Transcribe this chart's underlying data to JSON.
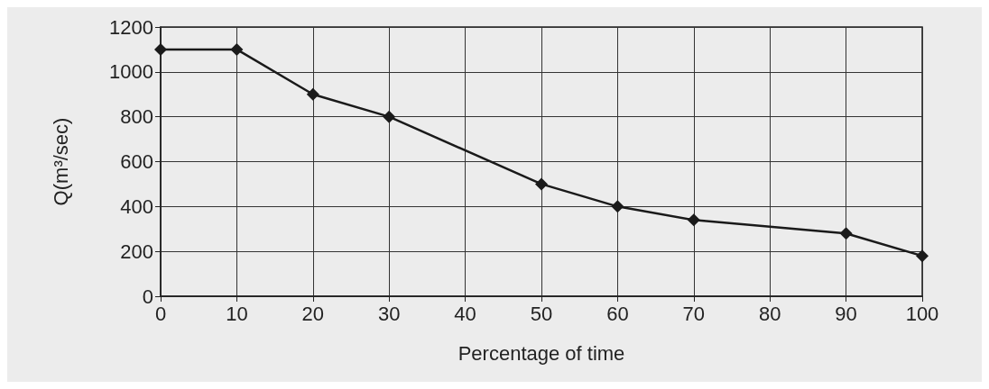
{
  "chart_data": {
    "type": "line",
    "xlabel": "Percentage of time",
    "ylabel": "Q(m³/sec)",
    "x": [
      0,
      10,
      20,
      30,
      50,
      60,
      70,
      90,
      100
    ],
    "series": [
      {
        "color": "#1a1a1a",
        "values": [
          1100,
          1100,
          900,
          800,
          500,
          400,
          340,
          280,
          180
        ]
      }
    ],
    "xlim": [
      0,
      100
    ],
    "xticks": [
      0,
      10,
      20,
      30,
      40,
      50,
      60,
      70,
      80,
      90,
      100
    ],
    "ylim": [
      0,
      1200
    ],
    "yticks": [
      0,
      200,
      400,
      600,
      800,
      1000,
      1200
    ],
    "grid": true,
    "marker": "diamond",
    "line_style": "solid"
  }
}
